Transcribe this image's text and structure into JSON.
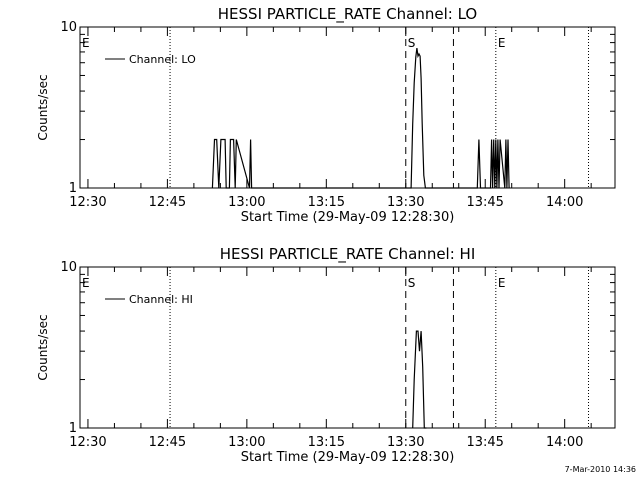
{
  "footer": "7-Mar-2010 14:36",
  "chart_data": [
    {
      "type": "line",
      "title": "HESSI PARTICLE_RATE Channel: LO",
      "xlabel": "Start Time (29-May-09 12:28:30)",
      "ylabel": "Counts/sec",
      "y_scale": "log",
      "ylim": [
        1,
        10
      ],
      "y_tick_labels": [
        "1",
        "10"
      ],
      "x_tick_labels": [
        "12:30",
        "12:45",
        "13:00",
        "13:15",
        "13:30",
        "13:45",
        "14:00"
      ],
      "x_range_minutes": [
        0,
        101
      ],
      "legend": "Channel: LO",
      "legend_position": "top-left",
      "markers": [
        {
          "label": "E",
          "minute": 0,
          "style": "dotted"
        },
        {
          "label": "",
          "minute": 17,
          "style": "dotted"
        },
        {
          "label": "S",
          "minute": 61.5,
          "style": "dashed"
        },
        {
          "label": "",
          "minute": 70.5,
          "style": "dashed"
        },
        {
          "label": "E",
          "minute": 78.5,
          "style": "dotted"
        },
        {
          "label": "",
          "minute": 96,
          "style": "dotted"
        }
      ],
      "series": [
        {
          "x": [
            25,
            25.4,
            25.8,
            26.2,
            26.6,
            27.4,
            27.6,
            28.2,
            28.4,
            29,
            29.3,
            29.5,
            32,
            32.2,
            32.4,
            62.5,
            62.8,
            63.1,
            63.4,
            63.6,
            63.8,
            64,
            64.2,
            64.4,
            64.6,
            64.9,
            65.2,
            65.5,
            75,
            75.3,
            75.6,
            77.5,
            77.7,
            77.9,
            78.1,
            78.3,
            78.5,
            78.7,
            78.9,
            79.1,
            79.3,
            80.2,
            80.4,
            80.6,
            80.8,
            81
          ],
          "y": [
            1,
            2,
            2,
            1,
            2,
            2,
            1,
            1,
            2,
            2,
            1,
            2,
            1,
            2,
            1,
            1,
            2.5,
            4.5,
            6.5,
            7.4,
            6.6,
            6.8,
            6.6,
            4.8,
            2.5,
            1.2,
            1,
            1,
            1,
            2,
            1,
            1,
            2,
            1,
            2,
            1,
            2,
            1,
            2,
            1,
            2,
            1,
            2,
            1,
            2,
            1
          ]
        }
      ]
    },
    {
      "type": "line",
      "title": "HESSI PARTICLE_RATE Channel: HI",
      "xlabel": "Start Time (29-May-09 12:28:30)",
      "ylabel": "Counts/sec",
      "y_scale": "log",
      "ylim": [
        1,
        10
      ],
      "y_tick_labels": [
        "1",
        "10"
      ],
      "x_tick_labels": [
        "12:30",
        "12:45",
        "13:00",
        "13:15",
        "13:30",
        "13:45",
        "14:00"
      ],
      "x_range_minutes": [
        0,
        101
      ],
      "legend": "Channel: HI",
      "legend_position": "top-left",
      "markers": [
        {
          "label": "E",
          "minute": 0,
          "style": "dotted"
        },
        {
          "label": "",
          "minute": 17,
          "style": "dotted"
        },
        {
          "label": "S",
          "minute": 61.5,
          "style": "dashed"
        },
        {
          "label": "",
          "minute": 70.5,
          "style": "dashed"
        },
        {
          "label": "E",
          "minute": 78.5,
          "style": "dotted"
        },
        {
          "label": "",
          "minute": 96,
          "style": "dotted"
        }
      ],
      "series": [
        {
          "x": [
            62.8,
            63.1,
            63.5,
            63.8,
            64.1,
            64.4,
            64.7,
            65,
            65.4
          ],
          "y": [
            1,
            2,
            4,
            4,
            3,
            4,
            2.4,
            1,
            1
          ]
        }
      ]
    }
  ]
}
